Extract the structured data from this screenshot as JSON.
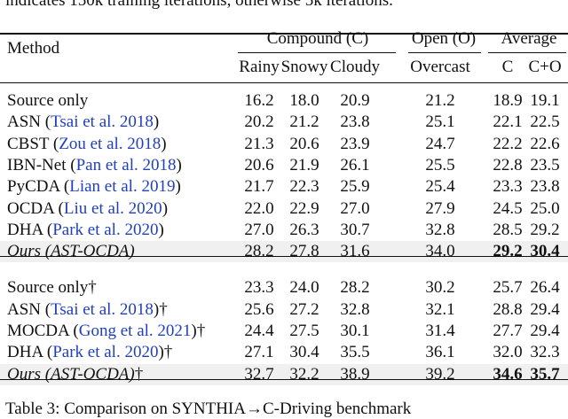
{
  "top_text": "indicates 150k training iterations, otherwise 5k iterations.",
  "header": {
    "method": "Method",
    "groups": [
      "Compound (C)",
      "Open (O)",
      "Average"
    ],
    "columns": [
      "Rainy",
      "Snowy",
      "Cloudy",
      "Overcast",
      "C",
      "C+O"
    ]
  },
  "table": {
    "groups": [
      {
        "rows": [
          {
            "method": "Source only",
            "cells": [
              "16.2",
              "18.0",
              "20.9",
              "21.2",
              "18.9",
              "19.1"
            ]
          },
          {
            "method": "ASN (",
            "cite": "Tsai et al. 2018",
            "close": ")",
            "cells": [
              "20.2",
              "21.2",
              "23.8",
              "25.1",
              "22.1",
              "22.5"
            ]
          },
          {
            "method": "CBST (",
            "cite": "Zou et al. 2018",
            "close": ")",
            "cells": [
              "21.3",
              "20.6",
              "23.9",
              "24.7",
              "22.2",
              "22.6"
            ]
          },
          {
            "method": "IBN-Net (",
            "cite": "Pan et al. 2018",
            "close": ")",
            "cells": [
              "20.6",
              "21.9",
              "26.1",
              "25.5",
              "22.8",
              "23.5"
            ]
          },
          {
            "method": "PyCDA (",
            "cite": "Lian et al. 2019",
            "close": ")",
            "cells": [
              "21.7",
              "22.3",
              "25.9",
              "25.4",
              "23.3",
              "23.8"
            ]
          },
          {
            "method": "OCDA (",
            "cite": "Liu et al. 2020",
            "close": ")",
            "cells": [
              "22.0",
              "22.9",
              "27.0",
              "27.9",
              "24.5",
              "25.0"
            ]
          },
          {
            "method": "DHA (",
            "cite": "Park et al. 2020",
            "close": ")",
            "cells": [
              "27.0",
              "26.3",
              "30.7",
              "32.8",
              "28.5",
              "29.2"
            ]
          },
          {
            "method": "Ours (AST-OCDA)",
            "ours": true,
            "bold": [
              4,
              5
            ],
            "cells": [
              "28.2",
              "27.8",
              "31.6",
              "34.0",
              "29.2",
              "30.4"
            ]
          }
        ]
      },
      {
        "rows": [
          {
            "method": "Source only",
            "close": "†",
            "cells": [
              "23.3",
              "24.0",
              "28.2",
              "30.2",
              "25.7",
              "26.4"
            ]
          },
          {
            "method": "ASN (",
            "cite": "Tsai et al. 2018",
            "close": ")†",
            "cells": [
              "25.6",
              "27.2",
              "32.8",
              "32.1",
              "28.8",
              "29.4"
            ]
          },
          {
            "method": "MOCDA (",
            "cite": "Gong et al. 2021",
            "close": ")†",
            "cells": [
              "24.4",
              "27.5",
              "30.1",
              "31.4",
              "27.7",
              "29.4"
            ]
          },
          {
            "method": "DHA (",
            "cite": "Park et al. 2020",
            "close": ")†",
            "cells": [
              "27.1",
              "30.4",
              "35.5",
              "36.1",
              "32.0",
              "32.3"
            ]
          },
          {
            "method": "Ours (AST-OCDA)",
            "close": "†",
            "ours": true,
            "bold": [
              4,
              5
            ],
            "cells": [
              "32.7",
              "32.2",
              "38.9",
              "39.2",
              "34.6",
              "35.7"
            ]
          }
        ]
      }
    ]
  },
  "caption": "Table 3: Comparison on SYNTHIA→C-Driving benchmark"
}
